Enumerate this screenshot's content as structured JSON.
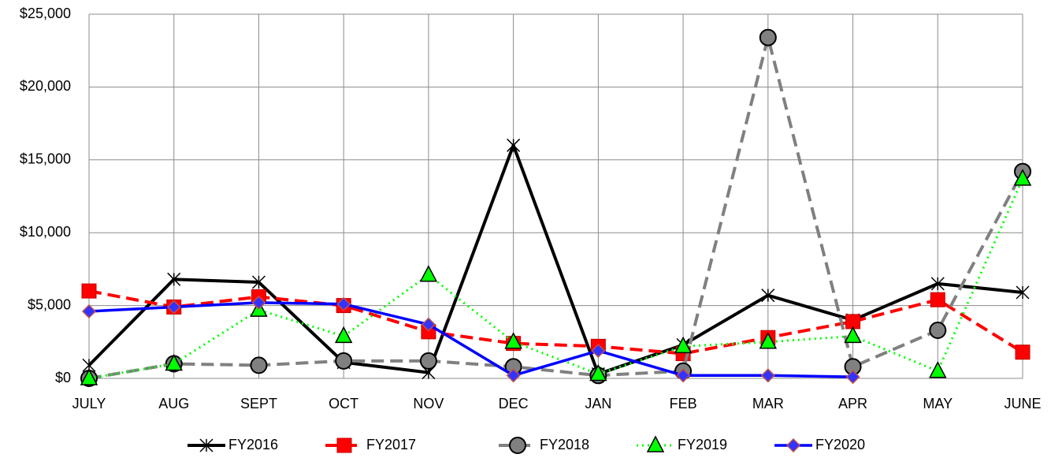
{
  "chart_data": {
    "type": "line",
    "categories": [
      "JULY",
      "AUG",
      "SEPT",
      "OCT",
      "NOV",
      "DEC",
      "JAN",
      "FEB",
      "MAR",
      "APR",
      "MAY",
      "JUNE"
    ],
    "ylim": [
      0,
      25000
    ],
    "yticks": [
      {
        "value": 0,
        "label": "$0"
      },
      {
        "value": 5000,
        "label": "$5,000"
      },
      {
        "value": 10000,
        "label": "$10,000"
      },
      {
        "value": 15000,
        "label": "$15,000"
      },
      {
        "value": 20000,
        "label": "$20,000"
      },
      {
        "value": 25000,
        "label": "$25,000"
      }
    ],
    "grid": true,
    "legend": "bottom",
    "series": [
      {
        "name": "FY2016",
        "color": "#000000",
        "values": [
          900,
          6800,
          6600,
          1100,
          400,
          16000,
          300,
          2300,
          5700,
          4000,
          6500,
          5900
        ]
      },
      {
        "name": "FY2017",
        "color": "#ff0000",
        "values": [
          6000,
          4900,
          5600,
          5000,
          3200,
          2400,
          2200,
          1700,
          2800,
          3900,
          5400,
          1800
        ]
      },
      {
        "name": "FY2018",
        "color": "#808080",
        "values": [
          0,
          1000,
          900,
          1200,
          1200,
          800,
          200,
          500,
          23400,
          800,
          3300,
          14200
        ]
      },
      {
        "name": "FY2019",
        "color": "#00ff00",
        "values": [
          0,
          1000,
          4700,
          2900,
          7100,
          2500,
          300,
          2200,
          2500,
          2900,
          500,
          13700
        ]
      },
      {
        "name": "FY2020",
        "color": "#0000ff",
        "values": [
          4600,
          4900,
          5200,
          5100,
          3700,
          200,
          1900,
          200,
          200,
          100,
          null,
          null
        ]
      }
    ]
  }
}
